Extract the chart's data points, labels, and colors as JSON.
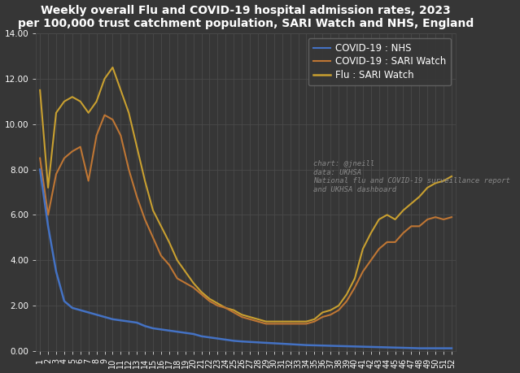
{
  "title": "Weekly overall Flu and COVID-19 hospital admission rates, 2023\nper 100,000 trust catchment population, SARI Watch and NHS, England",
  "bg_color": "#363636",
  "fig_bg_color": "#363636",
  "grid_color": "#4a4a4a",
  "text_color": "#ffffff",
  "ylim": [
    0,
    14.0
  ],
  "yticks": [
    0.0,
    2.0,
    4.0,
    6.0,
    8.0,
    10.0,
    12.0,
    14.0
  ],
  "weeks": [
    1,
    2,
    3,
    4,
    5,
    6,
    7,
    8,
    9,
    10,
    11,
    12,
    13,
    14,
    15,
    16,
    17,
    18,
    19,
    20,
    21,
    22,
    23,
    24,
    25,
    26,
    27,
    28,
    29,
    30,
    31,
    32,
    33,
    34,
    35,
    36,
    37,
    38,
    39,
    40,
    41,
    42,
    43,
    44,
    45,
    46,
    47,
    48,
    49,
    50,
    51,
    52
  ],
  "flu_sari": [
    8.0,
    5.5,
    3.5,
    2.2,
    1.9,
    1.8,
    1.7,
    1.6,
    1.5,
    1.4,
    1.35,
    1.3,
    1.25,
    1.1,
    1.0,
    0.95,
    0.9,
    0.85,
    0.8,
    0.75,
    0.65,
    0.6,
    0.55,
    0.5,
    0.45,
    0.42,
    0.4,
    0.38,
    0.36,
    0.34,
    0.32,
    0.3,
    0.28,
    0.26,
    0.25,
    0.24,
    0.23,
    0.22,
    0.21,
    0.2,
    0.19,
    0.18,
    0.17,
    0.16,
    0.15,
    0.14,
    0.13,
    0.12,
    0.12,
    0.12,
    0.12,
    0.12
  ],
  "covid_sari": [
    8.5,
    6.0,
    7.8,
    8.5,
    8.8,
    9.0,
    7.5,
    9.5,
    10.4,
    10.2,
    9.5,
    8.0,
    6.8,
    5.8,
    5.0,
    4.2,
    3.8,
    3.2,
    3.0,
    2.8,
    2.5,
    2.2,
    2.0,
    1.9,
    1.7,
    1.5,
    1.4,
    1.3,
    1.2,
    1.2,
    1.2,
    1.2,
    1.2,
    1.2,
    1.3,
    1.5,
    1.6,
    1.8,
    2.2,
    2.8,
    3.5,
    4.0,
    4.5,
    4.8,
    4.8,
    5.2,
    5.5,
    5.5,
    5.8,
    5.9,
    5.8,
    5.9
  ],
  "covid_nhs": [
    11.5,
    7.2,
    10.5,
    11.0,
    11.2,
    11.0,
    10.5,
    11.0,
    12.0,
    12.5,
    11.5,
    10.5,
    9.0,
    7.5,
    6.2,
    5.5,
    4.8,
    4.0,
    3.5,
    3.0,
    2.6,
    2.3,
    2.1,
    1.9,
    1.8,
    1.6,
    1.5,
    1.4,
    1.3,
    1.3,
    1.3,
    1.3,
    1.3,
    1.3,
    1.4,
    1.7,
    1.8,
    2.0,
    2.5,
    3.2,
    4.5,
    5.2,
    5.8,
    6.0,
    5.8,
    6.2,
    6.5,
    6.8,
    7.2,
    7.4,
    7.5,
    7.7
  ],
  "flu_color": "#4472c4",
  "covid_sari_color": "#bf7634",
  "covid_nhs_color": "#c9a030",
  "legend_labels": [
    "Flu : SARI Watch",
    "COVID-19 : SARI Watch",
    "COVID-19 : NHS"
  ],
  "annotation": "chart: @jneill\ndata: UKHSA\nNational flu and COVID-19 surveillance report\nand UKHSA dashboard",
  "annotation_color": "#888888",
  "title_fontsize": 10,
  "tick_fontsize": 7,
  "legend_fontsize": 8.5,
  "annotation_fontsize": 6.5
}
